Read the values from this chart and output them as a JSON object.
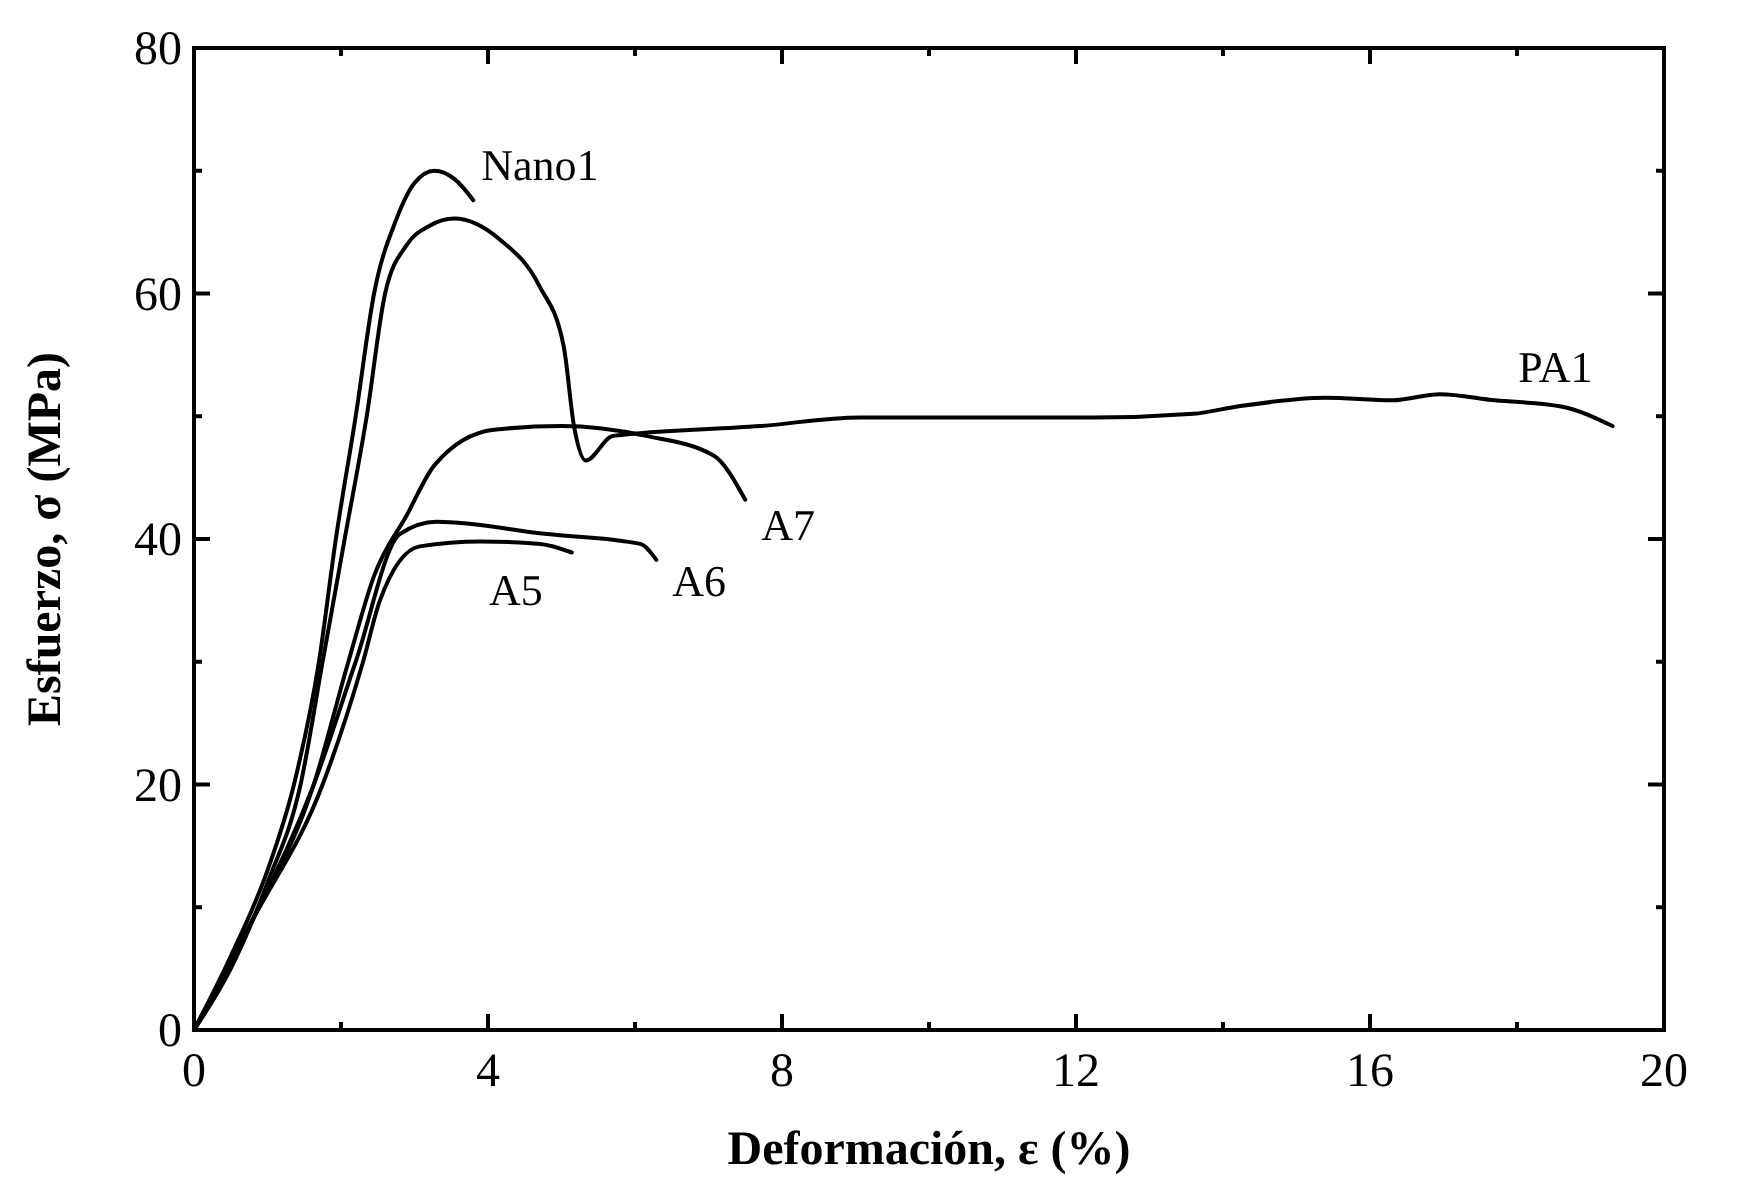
{
  "chart_data": {
    "type": "line",
    "xlabel": "Deformación, ε (%)",
    "ylabel": "Esfuerzo, σ (MPa)",
    "xlim": [
      0,
      20
    ],
    "ylim": [
      0,
      80
    ],
    "xticks": [
      0,
      4,
      8,
      12,
      16,
      20
    ],
    "yticks": [
      0,
      20,
      40,
      60,
      80
    ],
    "grid": false,
    "marker": "none",
    "line_style": "solid",
    "series": [
      {
        "name": "Nano1",
        "color": "#000000",
        "x": [
          0,
          0.5,
          1,
          1.36,
          1.7,
          1.93,
          2.2,
          2.45,
          2.75,
          3.0,
          3.27,
          3.55,
          3.8
        ],
        "values": [
          0,
          6,
          13,
          20,
          30,
          40,
          50,
          60,
          66,
          69,
          70,
          69.3,
          67.6
        ]
      },
      {
        "name": "PA1",
        "color": "#000000",
        "x": [
          0,
          0.5,
          1,
          1.45,
          1.75,
          2.05,
          2.35,
          2.6,
          2.9,
          3.2,
          3.54,
          4.16,
          4.7,
          5.03,
          5.17,
          5.33,
          5.7,
          7.7,
          9.06,
          12.24,
          13.6,
          14.2,
          15.4,
          16.3,
          16.95,
          17.7,
          18.6,
          19.3
        ],
        "values": [
          0,
          5,
          12,
          20,
          30,
          40,
          50,
          60,
          64,
          65.5,
          66.1,
          64.4,
          60.6,
          55.7,
          49.2,
          46.4,
          48.4,
          49.2,
          49.9,
          49.9,
          50.2,
          50.8,
          51.5,
          51.3,
          51.8,
          51.3,
          50.8,
          49.2
        ]
      },
      {
        "name": "A7",
        "color": "#000000",
        "x": [
          0,
          0.8,
          1.63,
          2.1,
          2.45,
          2.9,
          3.27,
          4.08,
          5,
          6.15,
          7.07,
          7.5
        ],
        "values": [
          0,
          9,
          20,
          30,
          37,
          42,
          46,
          48.9,
          49.2,
          48.4,
          46.8,
          43.2
        ]
      },
      {
        "name": "A6",
        "color": "#000000",
        "x": [
          0,
          0.8,
          1.63,
          2.2,
          2.8,
          3.3,
          4.8,
          6.07,
          6.29
        ],
        "values": [
          0,
          9,
          20,
          30,
          40.4,
          41.4,
          40.4,
          39.6,
          38.3
        ]
      },
      {
        "name": "A5",
        "color": "#000000",
        "x": [
          0,
          0.8,
          1.75,
          2.3,
          2.53,
          3.07,
          3.9,
          4.71,
          5.14
        ],
        "values": [
          0,
          9,
          20,
          30,
          35,
          39.4,
          39.8,
          39.6,
          38.9
        ]
      }
    ]
  }
}
